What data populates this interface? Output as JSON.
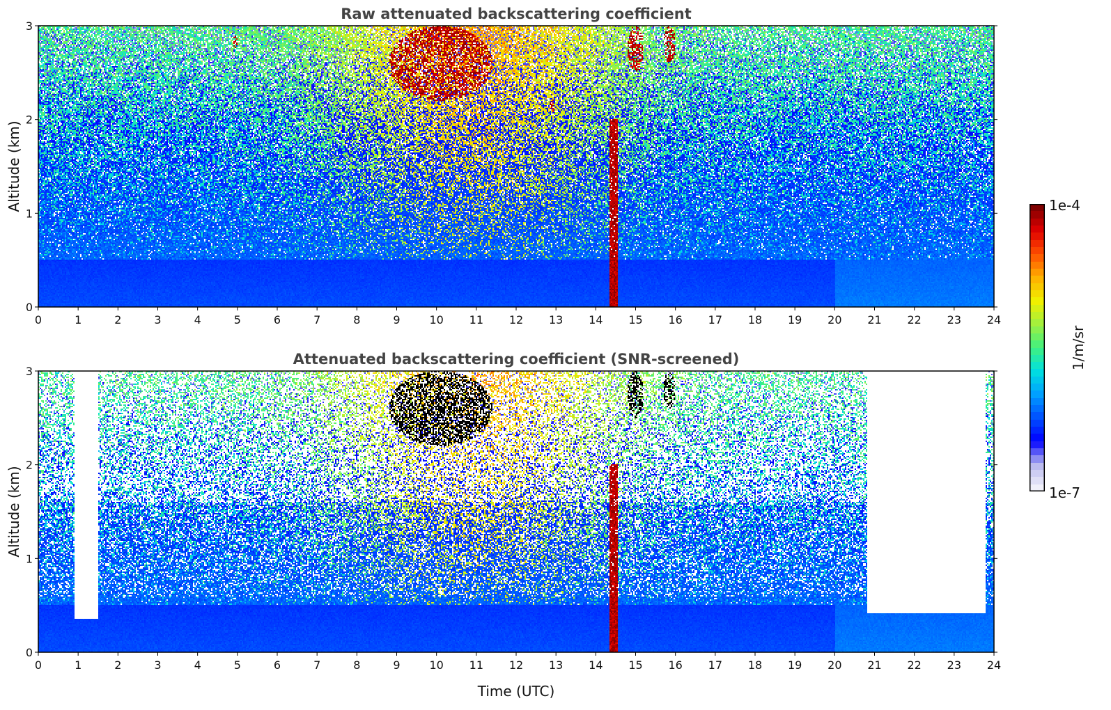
{
  "chart_data": [
    {
      "type": "heatmap",
      "title": "Raw attenuated backscattering coefficient",
      "xlabel": "",
      "ylabel": "Altitude (km)",
      "xlim": [
        0,
        24
      ],
      "ylim": [
        0,
        3
      ],
      "xticks": [
        "0",
        "1",
        "2",
        "3",
        "4",
        "5",
        "6",
        "7",
        "8",
        "9",
        "10",
        "11",
        "12",
        "13",
        "14",
        "15",
        "16",
        "17",
        "18",
        "19",
        "20",
        "21",
        "22",
        "23",
        "24"
      ],
      "yticks": [
        "0",
        "1",
        "2",
        "3"
      ],
      "scale": "log",
      "features": [
        {
          "kind": "cloud",
          "x": [
            8.8,
            11.4
          ],
          "y": [
            2.2,
            3.0
          ],
          "level": "high"
        },
        {
          "kind": "cloud",
          "x": [
            14.8,
            15.2
          ],
          "y": [
            2.5,
            3.0
          ],
          "level": "high"
        },
        {
          "kind": "cloud",
          "x": [
            15.7,
            16.0
          ],
          "y": [
            2.6,
            3.0
          ],
          "level": "high"
        },
        {
          "kind": "cloud",
          "x": [
            4.9,
            5.0
          ],
          "y": [
            2.75,
            2.9
          ],
          "level": "high"
        },
        {
          "kind": "cloud",
          "x": [
            12.85,
            12.95
          ],
          "y": [
            2.05,
            2.25
          ],
          "level": "high"
        },
        {
          "kind": "precipitation",
          "x": [
            14.35,
            14.55
          ],
          "y": [
            0,
            2.0
          ],
          "level": "high"
        },
        {
          "kind": "boundary-layer",
          "x": [
            0,
            24
          ],
          "y": [
            0,
            0.5
          ],
          "level": "medium"
        }
      ]
    },
    {
      "type": "heatmap",
      "title": "Attenuated backscattering coefficient (SNR-screened)",
      "xlabel": "Time (UTC)",
      "ylabel": "Altitude (km)",
      "xlim": [
        0,
        24
      ],
      "ylim": [
        0,
        3
      ],
      "xticks": [
        "0",
        "1",
        "2",
        "3",
        "4",
        "5",
        "6",
        "7",
        "8",
        "9",
        "10",
        "11",
        "12",
        "13",
        "14",
        "15",
        "16",
        "17",
        "18",
        "19",
        "20",
        "21",
        "22",
        "23",
        "24"
      ],
      "yticks": [
        "0",
        "1",
        "2",
        "3"
      ],
      "scale": "log",
      "features": [
        {
          "kind": "cloud",
          "x": [
            8.8,
            11.4
          ],
          "y": [
            2.2,
            3.0
          ],
          "level": "saturated"
        },
        {
          "kind": "cloud",
          "x": [
            14.8,
            15.2
          ],
          "y": [
            2.5,
            3.0
          ],
          "level": "saturated"
        },
        {
          "kind": "cloud",
          "x": [
            15.7,
            16.0
          ],
          "y": [
            2.6,
            3.0
          ],
          "level": "saturated"
        },
        {
          "kind": "precipitation",
          "x": [
            14.35,
            14.55
          ],
          "y": [
            0,
            2.0
          ],
          "level": "high"
        },
        {
          "kind": "screened-gap",
          "x": [
            0.9,
            1.5
          ],
          "y": [
            0.35,
            3.0
          ]
        },
        {
          "kind": "screened-gap",
          "x": [
            20.8,
            23.8
          ],
          "y": [
            0.42,
            3.0
          ]
        }
      ]
    }
  ],
  "colorbar": {
    "max_label": "1e-4",
    "min_label": "1e-7",
    "label": "1/m/sr",
    "colormap": [
      "#f0f0fa",
      "#b8b8ee",
      "#0000ff",
      "#0050ff",
      "#00a0ff",
      "#00e0e0",
      "#40f080",
      "#a0f040",
      "#f0f000",
      "#ffb000",
      "#ff5000",
      "#e00000",
      "#800000"
    ]
  }
}
